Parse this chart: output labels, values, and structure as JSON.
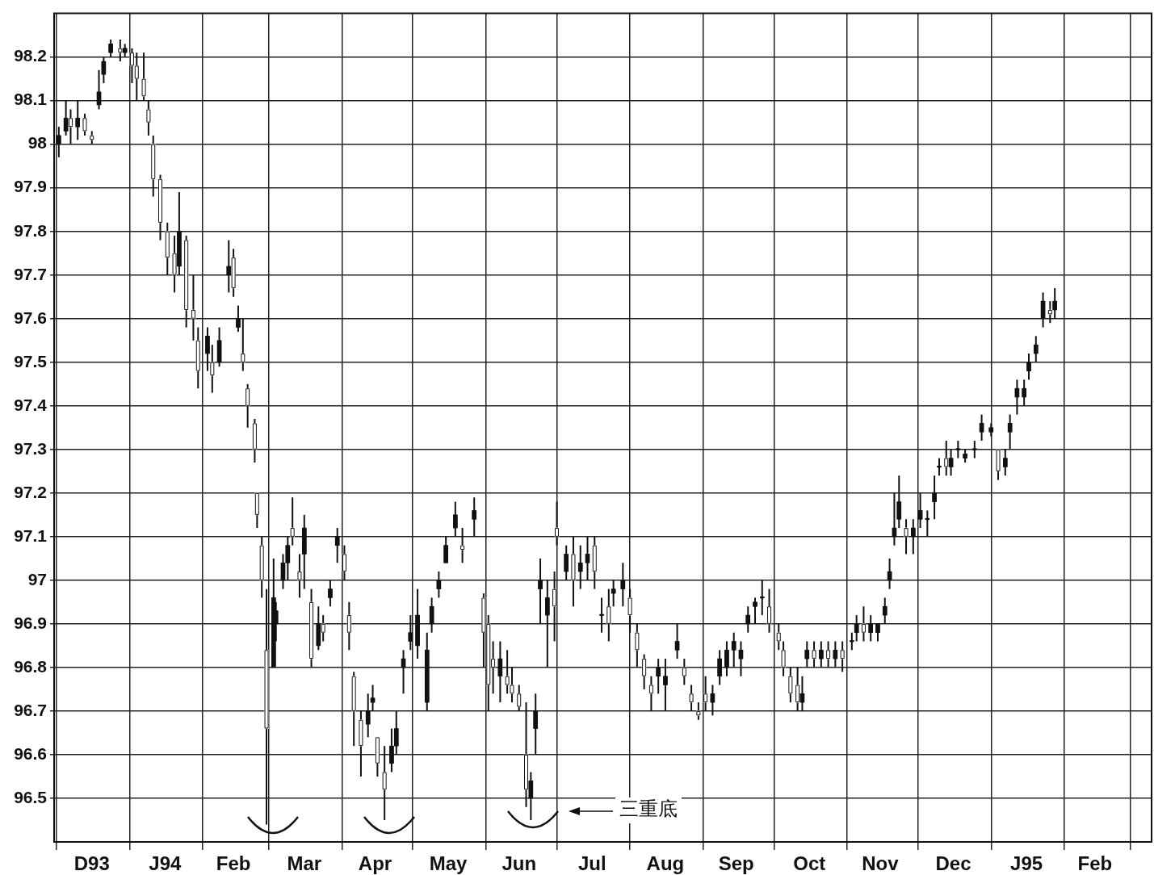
{
  "chart_data": {
    "type": "candlestick",
    "color": "#111111",
    "colors": [
      "#111111",
      "#111111",
      "#ffffff",
      "#111111",
      "#ffffff",
      "#ffffff",
      "#111111",
      "#111111",
      "#111111",
      "#ffffff",
      "#111111",
      "#ffffff",
      "#ffffff",
      "#ffffff",
      "#ffffff",
      "#ffffff",
      "#ffffff",
      "#ffffff",
      "#ffffff",
      "#111111",
      "#ffffff",
      "#ffffff",
      "#ffffff",
      "#111111",
      "#ffffff",
      "#111111",
      "#111111",
      "#ffffff",
      "#111111",
      "#ffffff",
      "#ffffff",
      "#ffffff",
      "#ffffff",
      "#ffffff",
      "#ffffff",
      "#111111",
      "#111111",
      "#111111",
      "#111111",
      "#ffffff",
      "#ffffff",
      "#111111",
      "#ffffff",
      "#111111",
      "#ffffff",
      "#111111",
      "#111111",
      "#ffffff",
      "#ffffff",
      "#ffffff",
      "#ffffff",
      "#111111",
      "#111111",
      "#ffffff",
      "#ffffff",
      "#111111",
      "#111111",
      "#111111",
      "#111111",
      "#111111",
      "#111111",
      "#111111",
      "#111111",
      "#111111",
      "#111111",
      "#ffffff",
      "#111111",
      "#ffffff",
      "#ffffff",
      "#ffffff",
      "#111111",
      "#ffffff",
      "#ffffff",
      "#ffffff",
      "#ffffff",
      "#111111",
      "#111111",
      "#111111",
      "#111111",
      "#ffffff",
      "#ffffff",
      "#111111",
      "#ffffff",
      "#111111",
      "#111111",
      "#ffffff",
      "#111111",
      "#ffffff",
      "#111111",
      "#111111",
      "#ffffff",
      "#ffffff",
      "#ffffff",
      "#ffffff",
      "#111111",
      "#111111",
      "#111111",
      "#ffffff",
      "#ffffff",
      "#ffffff",
      "#ffffff",
      "#111111",
      "#111111",
      "#111111",
      "#111111",
      "#111111",
      "#111111",
      "#111111",
      "#111111",
      "#ffffff",
      "#ffffff",
      "#ffffff",
      "#ffffff",
      "#ffffff",
      "#111111",
      "#111111",
      "#ffffff",
      "#111111",
      "#ffffff",
      "#111111",
      "#ffffff",
      "#111111",
      "#111111",
      "#ffffff",
      "#111111",
      "#111111",
      "#111111",
      "#111111",
      "#111111",
      "#111111",
      "#ffffff",
      "#111111",
      "#111111",
      "#111111",
      "#111111",
      "#111111",
      "#ffffff",
      "#111111",
      "#111111",
      "#111111",
      "#111111",
      "#111111",
      "#111111",
      "#ffffff",
      "#111111",
      "#111111",
      "#111111",
      "#111111",
      "#111111",
      "#111111",
      "#111111",
      "#ffffff",
      "#111111"
    ],
    "x": [
      "1993-12-02",
      "1993-12-05",
      "1993-12-07",
      "1993-12-10",
      "1993-12-13",
      "1993-12-16",
      "1993-12-19",
      "1993-12-21",
      "1993-12-24",
      "1993-12-28",
      "1993-12-30",
      "1994-01-02",
      "1994-01-04",
      "1994-01-07",
      "1994-01-09",
      "1994-01-11",
      "1994-01-14",
      "1994-01-17",
      "1994-01-20",
      "1994-01-22",
      "1994-01-25",
      "1994-01-28",
      "1994-01-30",
      "1994-02-03",
      "1994-02-05",
      "1994-02-08",
      "1994-02-12",
      "1994-02-14",
      "1994-02-16",
      "1994-02-18",
      "1994-02-20",
      "1994-02-23",
      "1994-02-24",
      "1994-02-26",
      "1994-02-28",
      "1994-03-03",
      "1994-03-04",
      "1994-03-07",
      "1994-03-09",
      "1994-03-11",
      "1994-03-14",
      "1994-03-16",
      "1994-03-19",
      "1994-03-22",
      "1994-03-24",
      "1994-03-27",
      "1994-03-30",
      "1994-04-02",
      "1994-04-04",
      "1994-04-06",
      "1994-04-09",
      "1994-04-12",
      "1994-04-14",
      "1994-04-16",
      "1994-04-19",
      "1994-04-22",
      "1994-04-24",
      "1994-04-27",
      "1994-04-30",
      "1994-05-03",
      "1994-05-07",
      "1994-05-09",
      "1994-05-12",
      "1994-05-15",
      "1994-05-19",
      "1994-05-22",
      "1994-05-27",
      "1994-05-31",
      "1994-06-02",
      "1994-06-04",
      "1994-06-07",
      "1994-06-10",
      "1994-06-12",
      "1994-06-15",
      "1994-06-18",
      "1994-06-20",
      "1994-06-22",
      "1994-06-24",
      "1994-06-27",
      "1994-06-30",
      "1994-07-01",
      "1994-07-05",
      "1994-07-08",
      "1994-07-11",
      "1994-07-14",
      "1994-07-17",
      "1994-07-20",
      "1994-07-23",
      "1994-07-25",
      "1994-07-29",
      "1994-08-01",
      "1994-08-04",
      "1994-08-07",
      "1994-08-10",
      "1994-08-13",
      "1994-08-16",
      "1994-08-21",
      "1994-08-24",
      "1994-08-27",
      "1994-08-30",
      "1994-09-02",
      "1994-09-05",
      "1994-09-08",
      "1994-09-11",
      "1994-09-14",
      "1994-09-17",
      "1994-09-20",
      "1994-09-23",
      "1994-09-26",
      "1994-09-29",
      "1994-10-03",
      "1994-10-05",
      "1994-10-08",
      "1994-10-11",
      "1994-10-13",
      "1994-10-15",
      "1994-10-18",
      "1994-10-21",
      "1994-10-24",
      "1994-10-27",
      "1994-10-30",
      "1994-11-03",
      "1994-11-05",
      "1994-11-08",
      "1994-11-11",
      "1994-11-14",
      "1994-11-17",
      "1994-11-19",
      "1994-11-21",
      "1994-11-23",
      "1994-11-26",
      "1994-11-29",
      "1994-12-02",
      "1994-12-05",
      "1994-12-08",
      "1994-12-10",
      "1994-12-13",
      "1994-12-15",
      "1994-12-18",
      "1994-12-21",
      "1994-12-25",
      "1994-12-28",
      "1995-01-01",
      "1995-01-04",
      "1995-01-07",
      "1995-01-09",
      "1995-01-12",
      "1995-01-15",
      "1995-01-17",
      "1995-01-20",
      "1995-01-23",
      "1995-01-26",
      "1995-01-28"
    ],
    "ohlc": [
      [
        98.0,
        98.04,
        97.97,
        98.02
      ],
      [
        98.03,
        98.1,
        98.02,
        98.06
      ],
      [
        98.06,
        98.08,
        98.0,
        98.04
      ],
      [
        98.04,
        98.1,
        98.01,
        98.06
      ],
      [
        98.06,
        98.07,
        98.02,
        98.03
      ],
      [
        98.02,
        98.03,
        98.0,
        98.01
      ],
      [
        98.09,
        98.17,
        98.08,
        98.12
      ],
      [
        98.16,
        98.2,
        98.14,
        98.19
      ],
      [
        98.21,
        98.24,
        98.2,
        98.23
      ],
      [
        98.22,
        98.24,
        98.19,
        98.21
      ],
      [
        98.21,
        98.23,
        98.2,
        98.22
      ],
      [
        98.21,
        98.22,
        98.14,
        98.18
      ],
      [
        98.18,
        98.21,
        98.1,
        98.15
      ],
      [
        98.15,
        98.21,
        98.1,
        98.11
      ],
      [
        98.08,
        98.1,
        98.02,
        98.05
      ],
      [
        98.0,
        98.02,
        97.88,
        97.92
      ],
      [
        97.92,
        97.93,
        97.78,
        97.82
      ],
      [
        97.8,
        97.82,
        97.7,
        97.74
      ],
      [
        97.75,
        97.79,
        97.66,
        97.7
      ],
      [
        97.72,
        97.89,
        97.7,
        97.8
      ],
      [
        97.78,
        97.79,
        97.58,
        97.62
      ],
      [
        97.62,
        97.7,
        97.55,
        97.6
      ],
      [
        97.55,
        97.58,
        97.44,
        97.48
      ],
      [
        97.52,
        97.58,
        97.48,
        97.56
      ],
      [
        97.5,
        97.54,
        97.43,
        97.47
      ],
      [
        97.5,
        97.58,
        97.49,
        97.55
      ],
      [
        97.7,
        97.78,
        97.66,
        97.72
      ],
      [
        97.74,
        97.76,
        97.65,
        97.67
      ],
      [
        97.58,
        97.63,
        97.57,
        97.6
      ],
      [
        97.52,
        97.6,
        97.48,
        97.5
      ],
      [
        97.44,
        97.45,
        97.35,
        97.4
      ],
      [
        97.36,
        97.37,
        97.27,
        97.3
      ],
      [
        97.2,
        97.2,
        97.12,
        97.15
      ],
      [
        97.08,
        97.1,
        96.96,
        97.0
      ],
      [
        96.84,
        96.98,
        96.44,
        96.66
      ],
      [
        96.8,
        97.05,
        96.8,
        96.96
      ],
      [
        96.9,
        96.95,
        96.86,
        96.93
      ],
      [
        97.0,
        97.06,
        96.98,
        97.04
      ],
      [
        97.04,
        97.1,
        97.0,
        97.08
      ],
      [
        97.12,
        97.19,
        97.08,
        97.1
      ],
      [
        97.02,
        97.06,
        96.96,
        97.0
      ],
      [
        97.06,
        97.15,
        96.98,
        97.12
      ],
      [
        96.95,
        96.98,
        96.8,
        96.82
      ],
      [
        96.85,
        96.94,
        96.84,
        96.9
      ],
      [
        96.9,
        96.92,
        96.86,
        96.88
      ],
      [
        96.96,
        97.0,
        96.94,
        96.98
      ],
      [
        97.08,
        97.12,
        97.04,
        97.1
      ],
      [
        97.06,
        97.08,
        97.0,
        97.02
      ],
      [
        96.92,
        96.95,
        96.84,
        96.88
      ],
      [
        96.78,
        96.79,
        96.62,
        96.7
      ],
      [
        96.68,
        96.7,
        96.55,
        96.62
      ],
      [
        96.67,
        96.74,
        96.64,
        96.7
      ],
      [
        96.72,
        96.76,
        96.7,
        96.73
      ],
      [
        96.64,
        96.64,
        96.55,
        96.58
      ],
      [
        96.56,
        96.62,
        96.45,
        96.52
      ],
      [
        96.58,
        96.66,
        96.56,
        96.62
      ],
      [
        96.62,
        96.7,
        96.6,
        96.66
      ],
      [
        96.8,
        96.84,
        96.74,
        96.82
      ],
      [
        96.86,
        96.92,
        96.84,
        96.88
      ],
      [
        96.85,
        96.98,
        96.82,
        96.92
      ],
      [
        96.72,
        96.88,
        96.7,
        96.84
      ],
      [
        96.9,
        96.96,
        96.88,
        96.94
      ],
      [
        96.98,
        97.02,
        96.96,
        97.0
      ],
      [
        97.04,
        97.1,
        97.04,
        97.08
      ],
      [
        97.12,
        97.18,
        97.1,
        97.15
      ],
      [
        97.08,
        97.12,
        97.04,
        97.07
      ],
      [
        97.14,
        97.19,
        97.1,
        97.16
      ],
      [
        96.96,
        96.97,
        96.8,
        96.88
      ],
      [
        96.9,
        96.92,
        96.7,
        96.76
      ],
      [
        96.82,
        96.86,
        96.74,
        96.8
      ],
      [
        96.78,
        96.86,
        96.72,
        96.82
      ],
      [
        96.78,
        96.84,
        96.74,
        96.76
      ],
      [
        96.76,
        96.8,
        96.72,
        96.74
      ],
      [
        96.74,
        96.76,
        96.7,
        96.71
      ],
      [
        96.6,
        96.72,
        96.48,
        96.52
      ],
      [
        96.5,
        96.56,
        96.45,
        96.54
      ],
      [
        96.66,
        96.74,
        96.6,
        96.7
      ],
      [
        96.98,
        97.05,
        96.9,
        97.0
      ],
      [
        96.92,
        97.0,
        96.8,
        96.96
      ],
      [
        96.98,
        97.02,
        96.86,
        96.94
      ],
      [
        97.12,
        97.18,
        97.08,
        97.1
      ],
      [
        97.02,
        97.08,
        97.0,
        97.06
      ],
      [
        97.06,
        97.1,
        96.94,
        97.0
      ],
      [
        97.02,
        97.08,
        96.98,
        97.04
      ],
      [
        97.04,
        97.1,
        97.0,
        97.06
      ],
      [
        97.08,
        97.1,
        96.98,
        97.02
      ],
      [
        96.92,
        96.96,
        96.88,
        96.92
      ],
      [
        96.94,
        96.98,
        96.86,
        96.9
      ],
      [
        96.97,
        97.0,
        96.94,
        96.98
      ],
      [
        96.98,
        97.04,
        96.94,
        97.0
      ],
      [
        96.96,
        96.98,
        96.88,
        96.92
      ],
      [
        96.88,
        96.9,
        96.8,
        96.84
      ],
      [
        96.82,
        96.83,
        96.75,
        96.78
      ],
      [
        96.76,
        96.78,
        96.7,
        96.74
      ],
      [
        96.78,
        96.82,
        96.74,
        96.8
      ],
      [
        96.76,
        96.82,
        96.7,
        96.78
      ],
      [
        96.84,
        96.9,
        96.82,
        96.86
      ],
      [
        96.8,
        96.82,
        96.76,
        96.78
      ],
      [
        96.74,
        96.76,
        96.7,
        96.72
      ],
      [
        96.7,
        96.72,
        96.68,
        96.69
      ],
      [
        96.74,
        96.78,
        96.7,
        96.72
      ],
      [
        96.72,
        96.76,
        96.69,
        96.74
      ],
      [
        96.78,
        96.84,
        96.76,
        96.82
      ],
      [
        96.8,
        96.86,
        96.78,
        96.84
      ],
      [
        96.84,
        96.88,
        96.8,
        96.86
      ],
      [
        96.82,
        96.86,
        96.78,
        96.84
      ],
      [
        96.9,
        96.94,
        96.88,
        96.92
      ],
      [
        96.94,
        96.96,
        96.9,
        96.95
      ],
      [
        96.96,
        97.0,
        96.92,
        96.96
      ],
      [
        96.94,
        96.98,
        96.88,
        96.9
      ],
      [
        96.88,
        96.9,
        96.84,
        96.86
      ],
      [
        96.84,
        96.86,
        96.78,
        96.8
      ],
      [
        96.78,
        96.8,
        96.72,
        96.74
      ],
      [
        96.76,
        96.8,
        96.7,
        96.72
      ],
      [
        96.72,
        96.78,
        96.7,
        96.74
      ],
      [
        96.82,
        96.86,
        96.8,
        96.84
      ],
      [
        96.84,
        96.86,
        96.8,
        96.82
      ],
      [
        96.82,
        96.86,
        96.8,
        96.84
      ],
      [
        96.84,
        96.86,
        96.8,
        96.82
      ],
      [
        96.82,
        96.86,
        96.8,
        96.84
      ],
      [
        96.84,
        96.86,
        96.79,
        96.82
      ],
      [
        96.86,
        96.88,
        96.84,
        96.86
      ],
      [
        96.88,
        96.92,
        96.86,
        96.9
      ],
      [
        96.9,
        96.94,
        96.86,
        96.88
      ],
      [
        96.88,
        96.92,
        96.86,
        96.9
      ],
      [
        96.88,
        96.9,
        96.86,
        96.9
      ],
      [
        96.92,
        96.96,
        96.9,
        96.94
      ],
      [
        97.0,
        97.05,
        96.98,
        97.02
      ],
      [
        97.1,
        97.2,
        97.08,
        97.12
      ],
      [
        97.14,
        97.24,
        97.12,
        97.18
      ],
      [
        97.12,
        97.14,
        97.06,
        97.1
      ],
      [
        97.1,
        97.14,
        97.06,
        97.12
      ],
      [
        97.14,
        97.2,
        97.12,
        97.16
      ],
      [
        97.14,
        97.16,
        97.1,
        97.14
      ],
      [
        97.18,
        97.24,
        97.14,
        97.2
      ],
      [
        97.26,
        97.28,
        97.24,
        97.26
      ],
      [
        97.28,
        97.32,
        97.24,
        97.26
      ],
      [
        97.26,
        97.3,
        97.24,
        97.28
      ],
      [
        97.3,
        97.32,
        97.28,
        97.3
      ],
      [
        97.28,
        97.3,
        97.27,
        97.29
      ],
      [
        97.3,
        97.32,
        97.28,
        97.3
      ],
      [
        97.34,
        97.38,
        97.32,
        97.36
      ],
      [
        97.34,
        97.36,
        97.33,
        97.35
      ],
      [
        97.3,
        97.3,
        97.23,
        97.25
      ],
      [
        97.26,
        97.3,
        97.24,
        97.28
      ],
      [
        97.34,
        97.38,
        97.3,
        97.36
      ],
      [
        97.42,
        97.46,
        97.38,
        97.44
      ],
      [
        97.42,
        97.46,
        97.4,
        97.44
      ],
      [
        97.48,
        97.52,
        97.46,
        97.5
      ],
      [
        97.52,
        97.56,
        97.5,
        97.54
      ],
      [
        97.6,
        97.66,
        97.58,
        97.64
      ],
      [
        97.62,
        97.64,
        97.59,
        97.61
      ],
      [
        97.62,
        97.67,
        97.6,
        97.64
      ]
    ],
    "xlim": [
      "1993-11-30",
      "1995-03-10"
    ],
    "xticks": [
      {
        "value": "1993-12-01",
        "label": null
      },
      {
        "value": "1993-12-16",
        "label": "D93"
      },
      {
        "value": "1994-01-01",
        "label": null
      },
      {
        "value": "1994-01-16",
        "label": "J94"
      },
      {
        "value": "1994-02-01",
        "label": null
      },
      {
        "value": "1994-02-14",
        "label": "Feb"
      },
      {
        "value": "1994-03-01",
        "label": null
      },
      {
        "value": "1994-03-16",
        "label": "Mar"
      },
      {
        "value": "1994-04-01",
        "label": null
      },
      {
        "value": "1994-04-15",
        "label": "Apr"
      },
      {
        "value": "1994-05-01",
        "label": null
      },
      {
        "value": "1994-05-16",
        "label": "May"
      },
      {
        "value": "1994-06-01",
        "label": null
      },
      {
        "value": "1994-06-15",
        "label": "Jun"
      },
      {
        "value": "1994-07-01",
        "label": null
      },
      {
        "value": "1994-07-16",
        "label": "Jul"
      },
      {
        "value": "1994-08-01",
        "label": null
      },
      {
        "value": "1994-08-16",
        "label": "Aug"
      },
      {
        "value": "1994-09-01",
        "label": null
      },
      {
        "value": "1994-09-15",
        "label": "Sep"
      },
      {
        "value": "1994-10-01",
        "label": null
      },
      {
        "value": "1994-10-16",
        "label": "Oct"
      },
      {
        "value": "1994-11-01",
        "label": null
      },
      {
        "value": "1994-11-15",
        "label": "Nov"
      },
      {
        "value": "1994-12-01",
        "label": null
      },
      {
        "value": "1994-12-16",
        "label": "Dec"
      },
      {
        "value": "1995-01-01",
        "label": null
      },
      {
        "value": "1995-01-16",
        "label": "J95"
      },
      {
        "value": "1995-02-01",
        "label": null
      },
      {
        "value": "1995-02-14",
        "label": "Feb"
      },
      {
        "value": "1995-03-01",
        "label": null
      }
    ],
    "ylim": [
      96.4,
      98.3
    ],
    "yticks": [
      96.5,
      96.6,
      96.7,
      96.8,
      96.9,
      97.0,
      97.1,
      97.2,
      97.3,
      97.4,
      97.5,
      97.6,
      97.7,
      97.8,
      97.9,
      98.0,
      98.1,
      98.2
    ],
    "grid": true,
    "legend": false,
    "annotations": [
      "三重底"
    ]
  }
}
